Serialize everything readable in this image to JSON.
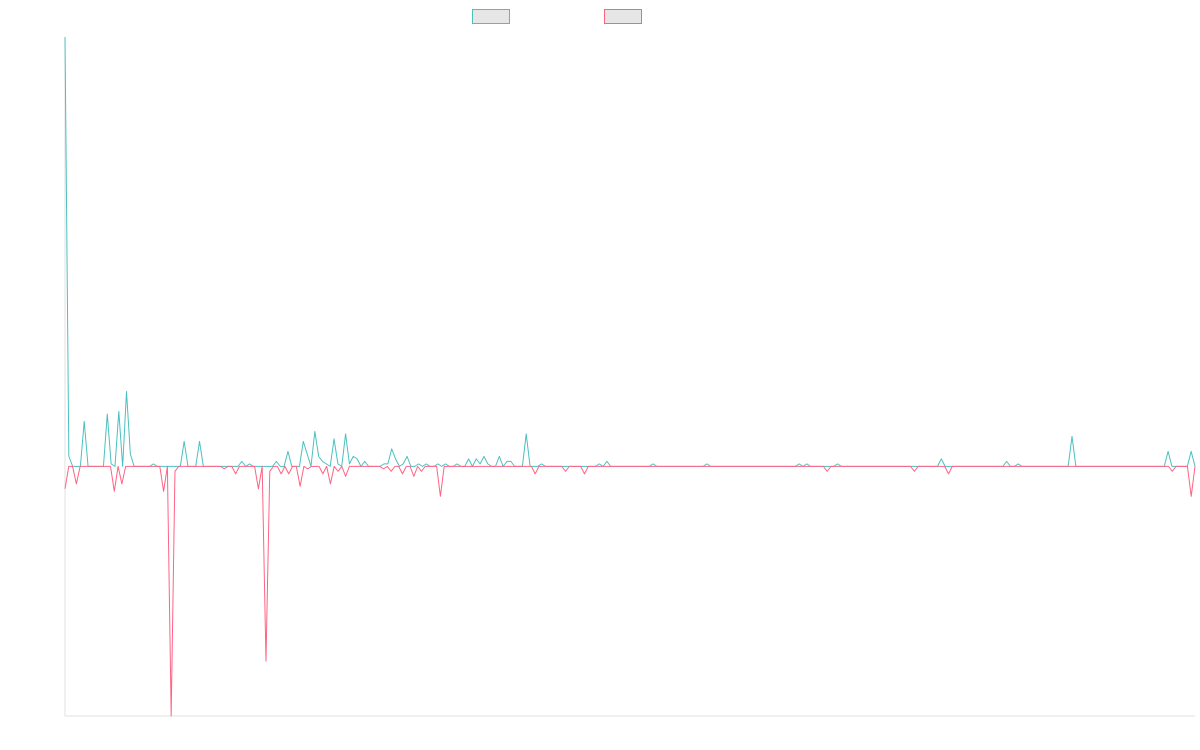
{
  "chart_data": {
    "type": "line",
    "title": "",
    "xlabel": "",
    "ylabel": "",
    "grid": false,
    "legend_placement": "top-center",
    "ylim": [
      -1.0,
      1.72
    ],
    "series": [
      {
        "name": "",
        "color": "#4bc0c0",
        "values": [
          1.72,
          0.04,
          0,
          0,
          0,
          0.18,
          0,
          0,
          0,
          0,
          0,
          0.21,
          0.01,
          0,
          0.22,
          0,
          0.3,
          0.05,
          0,
          0,
          0,
          0,
          0,
          0.01,
          0,
          0,
          0,
          0,
          0,
          0,
          0,
          0.1,
          0,
          0,
          0,
          0.1,
          0,
          0,
          0,
          0,
          0,
          0,
          0,
          0,
          0,
          0,
          0.02,
          0,
          0.01,
          0,
          0,
          0,
          0,
          0,
          0,
          0.02,
          0,
          0,
          0.06,
          0,
          0,
          0,
          0.1,
          0.05,
          0,
          0.14,
          0.04,
          0.02,
          0.01,
          0,
          0.11,
          0.01,
          0,
          0.13,
          0.01,
          0.04,
          0.03,
          0,
          0.02,
          0,
          0,
          0,
          0,
          0.01,
          0.01,
          0.07,
          0.03,
          0,
          0.01,
          0.04,
          0,
          0,
          0.01,
          0,
          0.01,
          0,
          0,
          0.01,
          0,
          0.01,
          0,
          0,
          0.01,
          0,
          0,
          0.03,
          0,
          0.03,
          0.01,
          0.04,
          0.01,
          0,
          0,
          0.04,
          0,
          0.02,
          0.02,
          0,
          0,
          0,
          0.13,
          0,
          0,
          0,
          0.01,
          0,
          0,
          0,
          0,
          0,
          0,
          0,
          0,
          0,
          0,
          0,
          0,
          0,
          0,
          0.01,
          0,
          0.02,
          0,
          0,
          0,
          0,
          0,
          0,
          0,
          0,
          0,
          0,
          0,
          0.01,
          0,
          0,
          0,
          0,
          0,
          0,
          0,
          0,
          0,
          0,
          0,
          0,
          0,
          0.01,
          0,
          0,
          0,
          0,
          0,
          0,
          0,
          0,
          0,
          0,
          0,
          0,
          0,
          0,
          0,
          0,
          0,
          0,
          0,
          0,
          0,
          0,
          0,
          0.01,
          0,
          0.01,
          0,
          0,
          0,
          0,
          0,
          0,
          0,
          0.01,
          0,
          0,
          0,
          0,
          0,
          0,
          0,
          0,
          0,
          0,
          0,
          0,
          0,
          0,
          0,
          0,
          0,
          0,
          0,
          0,
          0,
          0,
          0,
          0,
          0,
          0,
          0.03,
          0,
          0,
          0,
          0,
          0,
          0,
          0,
          0,
          0,
          0,
          0,
          0,
          0,
          0,
          0,
          0,
          0.02,
          0,
          0,
          0.01,
          0,
          0,
          0,
          0,
          0,
          0,
          0,
          0,
          0,
          0,
          0,
          0,
          0,
          0.12,
          0,
          0,
          0,
          0,
          0,
          0,
          0,
          0,
          0,
          0,
          0,
          0,
          0,
          0,
          0,
          0,
          0,
          0,
          0,
          0,
          0,
          0,
          0,
          0,
          0.06,
          0,
          0,
          0,
          0,
          0,
          0.06,
          0
        ]
      },
      {
        "name": "",
        "color": "#ff6384",
        "values": [
          -0.09,
          0,
          0,
          -0.07,
          0,
          0,
          0,
          0,
          0,
          0,
          0,
          0,
          0,
          -0.1,
          0,
          -0.07,
          0,
          0,
          0,
          0,
          0,
          0,
          0,
          0,
          0,
          0,
          -0.1,
          0,
          -1.0,
          -0.02,
          0,
          0,
          0,
          0,
          0,
          0,
          0,
          0,
          0,
          0,
          0,
          0,
          -0.01,
          0,
          0,
          -0.03,
          0,
          0,
          0,
          0,
          0,
          -0.09,
          0,
          -0.78,
          -0.02,
          0,
          0,
          -0.03,
          0,
          -0.03,
          0,
          0,
          -0.08,
          0,
          -0.01,
          0,
          0,
          0,
          -0.03,
          0,
          -0.07,
          0,
          -0.02,
          0,
          -0.04,
          0,
          0,
          0,
          0,
          0,
          0,
          0,
          0,
          0,
          -0.01,
          0,
          -0.02,
          0,
          0,
          -0.03,
          0,
          0,
          -0.04,
          0,
          -0.02,
          0,
          0,
          0,
          0,
          -0.12,
          0,
          0,
          0,
          0,
          0,
          0,
          0,
          0,
          0,
          0,
          0,
          0,
          0,
          0,
          0,
          0,
          0,
          0,
          0,
          0,
          0,
          0,
          0,
          0,
          -0.03,
          0,
          0,
          0,
          0,
          0,
          0,
          0,
          -0.02,
          0,
          0,
          0,
          0,
          -0.03,
          0,
          0,
          0,
          0,
          0,
          0,
          0,
          0,
          0,
          0,
          0,
          0,
          0,
          0,
          0,
          0,
          0,
          0,
          0,
          0,
          0,
          0,
          0,
          0,
          0,
          0,
          0,
          0,
          0,
          0,
          0,
          0,
          0,
          0,
          0,
          0,
          0,
          0,
          0,
          0,
          0,
          0,
          0,
          0,
          0,
          0,
          0,
          0,
          0,
          0,
          0,
          0,
          0,
          0,
          0,
          0,
          0,
          0,
          0,
          0,
          0,
          0,
          0,
          -0.02,
          0,
          0,
          0,
          0,
          0,
          0,
          0,
          0,
          0,
          0,
          0,
          0,
          0,
          0,
          0,
          0,
          0,
          0,
          0,
          0,
          0,
          0,
          -0.02,
          0,
          0,
          0,
          0,
          0,
          0,
          0,
          0,
          -0.03,
          0,
          0,
          0,
          0,
          0,
          0,
          0,
          0,
          0,
          0,
          0,
          0,
          0,
          0,
          0,
          0,
          0,
          0,
          0,
          0,
          0,
          0,
          0,
          0,
          0,
          0,
          0,
          0,
          0,
          0,
          0,
          0,
          0,
          0,
          0,
          0,
          0,
          0,
          0,
          0,
          0,
          0,
          0,
          0,
          0,
          0,
          0,
          0,
          0,
          0,
          0,
          0,
          0,
          0,
          0,
          0,
          0,
          0,
          -0.02,
          0,
          0,
          0,
          0,
          -0.12,
          0
        ]
      }
    ]
  }
}
